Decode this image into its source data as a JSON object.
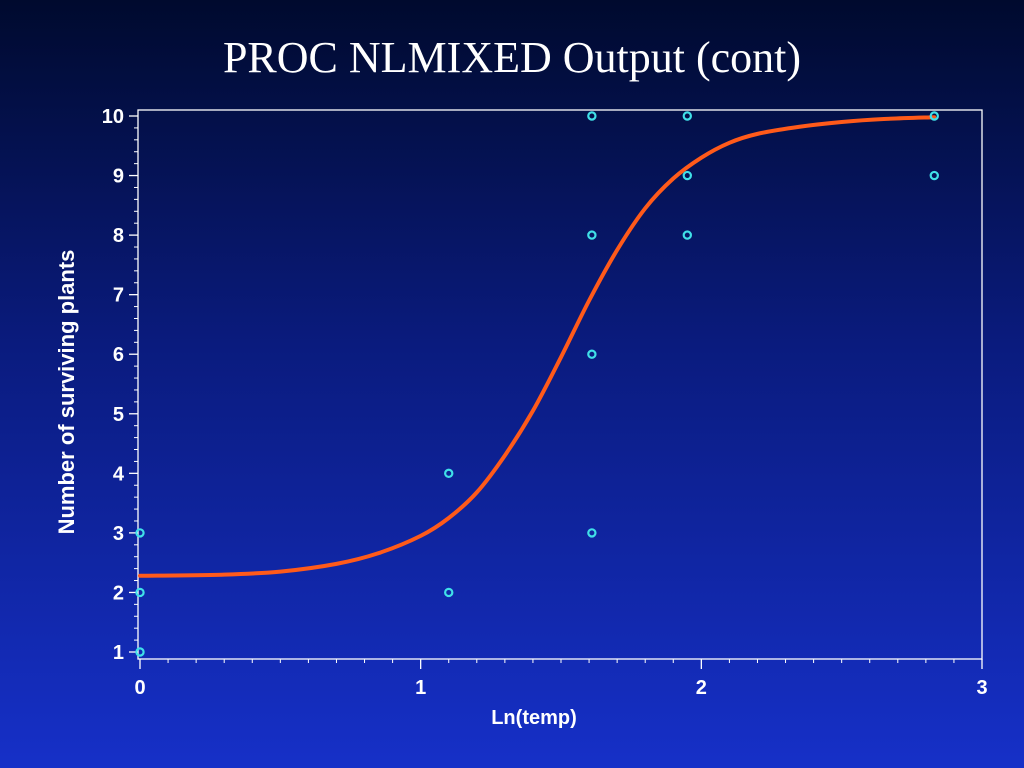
{
  "slide": {
    "title": "PROC NLMIXED Output (cont)"
  },
  "colors": {
    "background_top": "#000a2e",
    "background_bottom": "#1630c8",
    "axis": "#ffffff",
    "points": "#40e0e8",
    "curve": "#ff5a1a"
  },
  "chart_data": {
    "type": "scatter",
    "title": "",
    "xlabel": "Ln(temp)",
    "ylabel": "Number of surviving plants",
    "xlim": [
      0,
      3
    ],
    "ylim": [
      1,
      10
    ],
    "x_ticks": [
      0,
      1,
      2,
      3
    ],
    "y_ticks": [
      1,
      2,
      3,
      4,
      5,
      6,
      7,
      8,
      9,
      10
    ],
    "grid": false,
    "legend": "none",
    "series": [
      {
        "kind": "points",
        "points": [
          {
            "x": 0,
            "y": 1
          },
          {
            "x": 0,
            "y": 2
          },
          {
            "x": 0,
            "y": 3
          },
          {
            "x": 1.1,
            "y": 2
          },
          {
            "x": 1.1,
            "y": 4
          },
          {
            "x": 1.61,
            "y": 3
          },
          {
            "x": 1.61,
            "y": 6
          },
          {
            "x": 1.61,
            "y": 8
          },
          {
            "x": 1.61,
            "y": 10
          },
          {
            "x": 1.95,
            "y": 8
          },
          {
            "x": 1.95,
            "y": 9
          },
          {
            "x": 1.95,
            "y": 10
          },
          {
            "x": 2.83,
            "y": 9
          },
          {
            "x": 2.83,
            "y": 10
          }
        ]
      },
      {
        "kind": "fitted-curve",
        "points": [
          {
            "x": 0.0,
            "y": 2.28
          },
          {
            "x": 0.3,
            "y": 2.3
          },
          {
            "x": 0.5,
            "y": 2.35
          },
          {
            "x": 0.7,
            "y": 2.48
          },
          {
            "x": 0.85,
            "y": 2.66
          },
          {
            "x": 1.0,
            "y": 2.95
          },
          {
            "x": 1.1,
            "y": 3.25
          },
          {
            "x": 1.2,
            "y": 3.68
          },
          {
            "x": 1.3,
            "y": 4.3
          },
          {
            "x": 1.4,
            "y": 5.05
          },
          {
            "x": 1.5,
            "y": 5.95
          },
          {
            "x": 1.6,
            "y": 6.9
          },
          {
            "x": 1.7,
            "y": 7.75
          },
          {
            "x": 1.8,
            "y": 8.45
          },
          {
            "x": 1.9,
            "y": 8.95
          },
          {
            "x": 2.0,
            "y": 9.3
          },
          {
            "x": 2.1,
            "y": 9.55
          },
          {
            "x": 2.2,
            "y": 9.7
          },
          {
            "x": 2.35,
            "y": 9.82
          },
          {
            "x": 2.5,
            "y": 9.9
          },
          {
            "x": 2.65,
            "y": 9.95
          },
          {
            "x": 2.83,
            "y": 9.98
          }
        ]
      }
    ]
  }
}
